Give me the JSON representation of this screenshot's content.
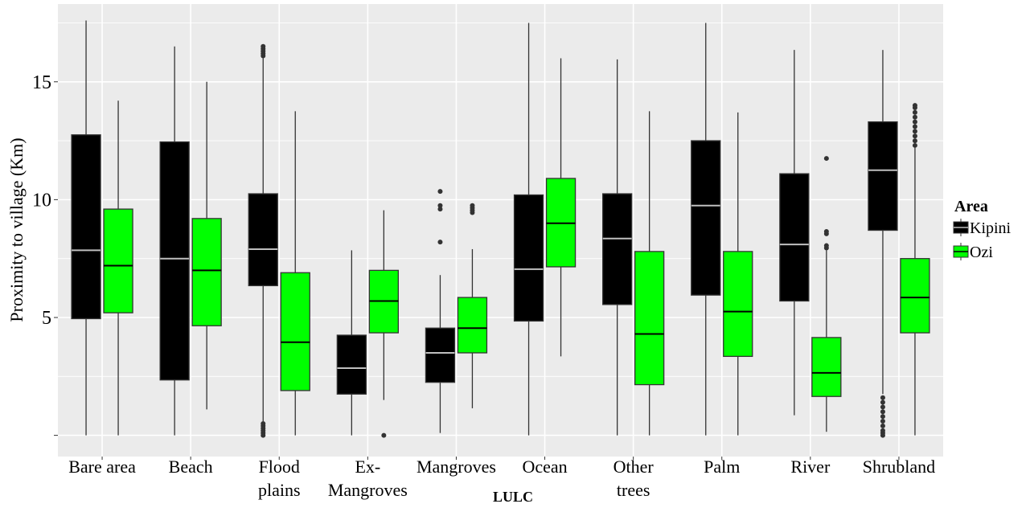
{
  "chart_data": {
    "type": "boxplot",
    "xlabel": "LULC",
    "ylabel": "Proximity to village (Km)",
    "ylim": [
      -0.9,
      18.3
    ],
    "yticks": [
      0,
      5,
      10,
      15
    ],
    "ytick_labels": [
      "",
      "5",
      "10",
      "15"
    ],
    "grid": true,
    "legend": {
      "title": "Area",
      "position": "right"
    },
    "categories": [
      [
        "Bare area"
      ],
      [
        "Beach"
      ],
      [
        "Flood",
        "plains"
      ],
      [
        "Ex-",
        "Mangroves"
      ],
      [
        "Mangroves"
      ],
      [
        "Ocean"
      ],
      [
        "Other",
        "trees"
      ],
      [
        "Palm"
      ],
      [
        "River"
      ],
      [
        "Shrubland"
      ]
    ],
    "series": [
      {
        "name": "Kipini",
        "color": "#000000",
        "median_color": "#bfbfbf",
        "boxes": [
          {
            "min": 0.0,
            "q1": 4.95,
            "median": 7.85,
            "q3": 12.75,
            "max": 17.6,
            "outliers": []
          },
          {
            "min": 0.0,
            "q1": 2.35,
            "median": 7.5,
            "q3": 12.45,
            "max": 16.5,
            "outliers": []
          },
          {
            "min": 0.6,
            "q1": 6.35,
            "median": 7.9,
            "q3": 10.25,
            "max": 16.0,
            "outliers": [
              0.0,
              0.1,
              0.2,
              0.3,
              0.4,
              0.5,
              16.1,
              16.2,
              16.3,
              16.4,
              16.5
            ]
          },
          {
            "min": 0.0,
            "q1": 1.75,
            "median": 2.85,
            "q3": 4.25,
            "max": 7.85,
            "outliers": []
          },
          {
            "min": 0.1,
            "q1": 2.25,
            "median": 3.5,
            "q3": 4.55,
            "max": 6.8,
            "outliers": [
              8.2,
              9.6,
              9.75,
              10.35
            ]
          },
          {
            "min": 0.0,
            "q1": 4.85,
            "median": 7.05,
            "q3": 10.2,
            "max": 17.5,
            "outliers": []
          },
          {
            "min": 0.0,
            "q1": 5.55,
            "median": 8.35,
            "q3": 10.25,
            "max": 15.95,
            "outliers": []
          },
          {
            "min": 0.0,
            "q1": 5.95,
            "median": 9.75,
            "q3": 12.5,
            "max": 17.5,
            "outliers": []
          },
          {
            "min": 0.85,
            "q1": 5.7,
            "median": 8.1,
            "q3": 11.1,
            "max": 16.35,
            "outliers": []
          },
          {
            "min": 1.75,
            "q1": 8.7,
            "median": 11.25,
            "q3": 13.3,
            "max": 16.35,
            "outliers": [
              0.0,
              0.1,
              0.2,
              0.4,
              0.6,
              0.8,
              1.0,
              1.2,
              1.4,
              1.6
            ]
          }
        ]
      },
      {
        "name": "Ozi",
        "color": "#00ff00",
        "median_color": "#000000",
        "boxes": [
          {
            "min": 0.0,
            "q1": 5.2,
            "median": 7.2,
            "q3": 9.6,
            "max": 14.2,
            "outliers": []
          },
          {
            "min": 1.1,
            "q1": 4.65,
            "median": 7.0,
            "q3": 9.2,
            "max": 15.0,
            "outliers": []
          },
          {
            "min": 0.0,
            "q1": 1.9,
            "median": 3.95,
            "q3": 6.9,
            "max": 13.75,
            "outliers": []
          },
          {
            "min": 1.5,
            "q1": 4.35,
            "median": 5.7,
            "q3": 7.0,
            "max": 9.55,
            "outliers": [
              0.0
            ]
          },
          {
            "min": 1.15,
            "q1": 3.5,
            "median": 4.55,
            "q3": 5.85,
            "max": 7.9,
            "outliers": [
              9.45,
              9.55,
              9.65,
              9.75
            ]
          },
          {
            "min": 3.35,
            "q1": 7.15,
            "median": 9.0,
            "q3": 10.9,
            "max": 16.0,
            "outliers": []
          },
          {
            "min": 0.0,
            "q1": 2.15,
            "median": 4.3,
            "q3": 7.8,
            "max": 13.75,
            "outliers": []
          },
          {
            "min": 0.0,
            "q1": 3.35,
            "median": 5.25,
            "q3": 7.8,
            "max": 13.7,
            "outliers": []
          },
          {
            "min": 0.15,
            "q1": 1.65,
            "median": 2.65,
            "q3": 4.15,
            "max": 7.85,
            "outliers": [
              7.95,
              8.05,
              8.55,
              8.65,
              11.75
            ]
          },
          {
            "min": 0.0,
            "q1": 4.35,
            "median": 5.85,
            "q3": 7.5,
            "max": 12.2,
            "outliers": [
              12.3,
              12.5,
              12.7,
              12.9,
              13.1,
              13.3,
              13.5,
              13.7,
              13.9,
              14.0
            ]
          }
        ]
      }
    ]
  }
}
